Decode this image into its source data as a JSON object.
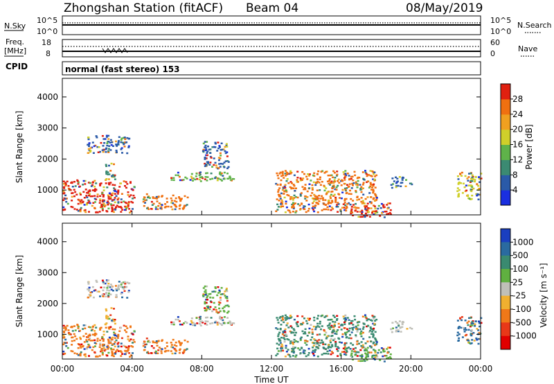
{
  "chart_data": {
    "type": "heatmap",
    "header": {
      "title": "Zhongshan Station (fitACF)",
      "beam": "Beam 04",
      "date": "08/May/2019",
      "nsky_label": "N.Sky",
      "nsky_ticks": [
        "10^5",
        "10^0"
      ],
      "nsearch_label": "N.Search",
      "nsearch_ticks": [
        "10^5",
        "10^0"
      ],
      "freq_label_1": "Freq.",
      "freq_label_2": "[MHz]",
      "freq_ticks": [
        "18",
        "8"
      ],
      "nave_label": "Nave",
      "nave_ticks": [
        "60",
        "0"
      ],
      "cpid_label": "CPID",
      "cpid_value": "normal (fast stereo) 153"
    },
    "x_axis": {
      "label": "Time UT",
      "ticks": [
        "00:00",
        "04:00",
        "08:00",
        "12:00",
        "16:00",
        "20:00",
        "00:00"
      ],
      "range_hours": [
        0,
        24
      ]
    },
    "panels": [
      {
        "name": "power",
        "ylabel": "Slant Range [km]",
        "yticks": [
          1000,
          2000,
          3000,
          4000
        ],
        "ylim": [
          200,
          4600
        ],
        "colorbar_label": "Power [dB]",
        "colorbar_ticks": [
          "4",
          "8",
          "12",
          "16",
          "20",
          "24",
          "28"
        ],
        "colorbar_range": [
          0,
          32
        ],
        "colors": [
          "#1a2fe0",
          "#2a5aa8",
          "#3b8a72",
          "#5fb24a",
          "#cfcf2a",
          "#f0a020",
          "#f07010",
          "#e02010"
        ]
      },
      {
        "name": "velocity",
        "ylabel": "Slant Range [km]",
        "yticks": [
          1000,
          2000,
          3000,
          4000
        ],
        "ylim": [
          200,
          4600
        ],
        "colorbar_label": "Velocity [m s⁻¹]",
        "colorbar_ticks": [
          "1000",
          "500",
          "100",
          "25",
          "-25",
          "-100",
          "-500",
          "-1000"
        ],
        "colorbar_range": [
          -1200,
          1200
        ],
        "colors": [
          "#1a3fc0",
          "#2a6aa0",
          "#3a8a70",
          "#60b040",
          "#c0c0b8",
          "#f0b030",
          "#f07818",
          "#e83818",
          "#e00000"
        ]
      }
    ],
    "echo_regions": [
      {
        "t0": 0.0,
        "t1": 4.1,
        "r0": 300,
        "r1": 1350,
        "power": "#e02010",
        "velocity": "#f07818"
      },
      {
        "t0": 2.4,
        "t1": 3.0,
        "r0": 1300,
        "r1": 1900,
        "power": "#3b8a72",
        "velocity": "#f0b030"
      },
      {
        "t0": 1.4,
        "t1": 3.8,
        "r0": 2200,
        "r1": 2800,
        "power": "#2a5aa8",
        "velocity": "#c0c0b8"
      },
      {
        "t0": 4.6,
        "t1": 7.2,
        "r0": 400,
        "r1": 900,
        "power": "#f07010",
        "velocity": "#f07818"
      },
      {
        "t0": 6.2,
        "t1": 9.8,
        "r0": 1300,
        "r1": 1600,
        "power": "#5fb24a",
        "velocity": "#c0c0b8"
      },
      {
        "t0": 8.0,
        "t1": 9.5,
        "r0": 1700,
        "r1": 2600,
        "power": "#2a5aa8",
        "velocity": "#60b040"
      },
      {
        "t0": 12.2,
        "t1": 18.0,
        "r0": 300,
        "r1": 1650,
        "power": "#f07010",
        "velocity": "#3a8a70"
      },
      {
        "t0": 16.5,
        "t1": 18.8,
        "r0": 150,
        "r1": 600,
        "power": "#e02010",
        "velocity": "#60b040"
      },
      {
        "t0": 18.8,
        "t1": 20.0,
        "r0": 1100,
        "r1": 1450,
        "power": "#2a5aa8",
        "velocity": "#c0c0b8"
      },
      {
        "t0": 22.6,
        "t1": 24.0,
        "r0": 700,
        "r1": 1600,
        "power": "#cfcf2a",
        "velocity": "#2a6aa0"
      }
    ]
  }
}
